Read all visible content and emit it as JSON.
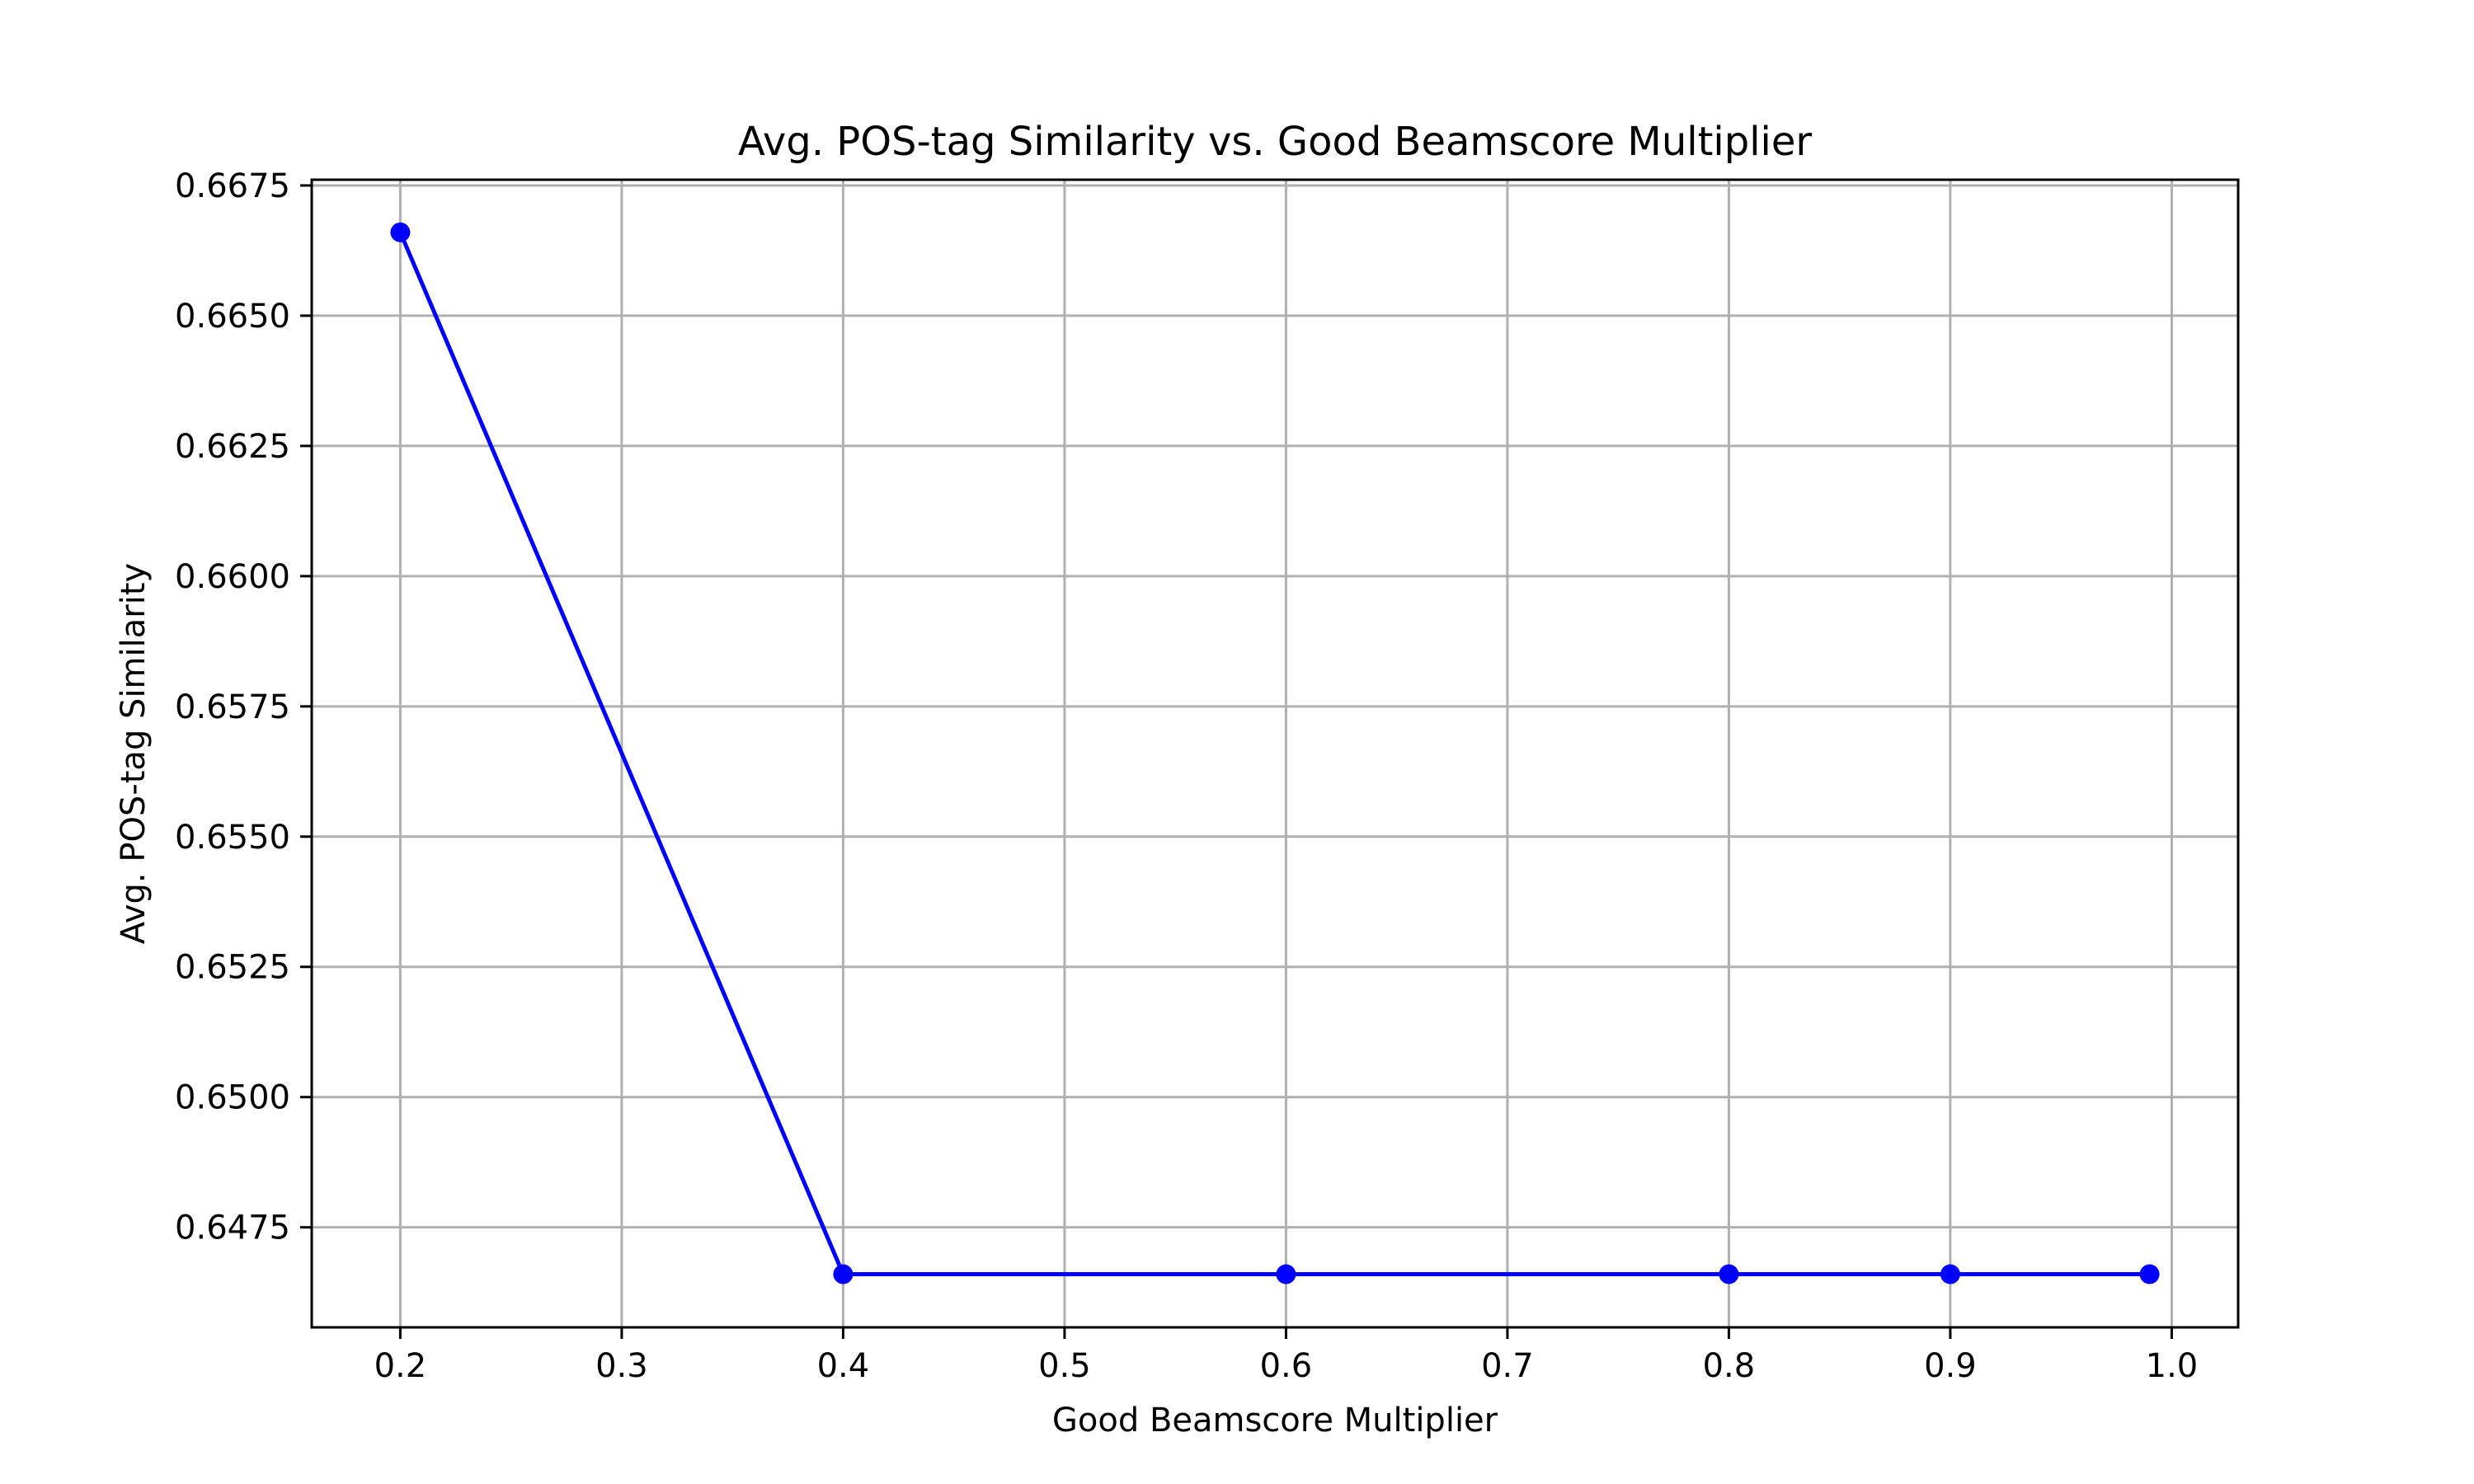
{
  "chart_data": {
    "type": "line",
    "title": "Avg. POS-tag Similarity vs. Good Beamscore Multiplier",
    "xlabel": "Good Beamscore Multiplier",
    "ylabel": "Avg. POS-tag Similarity",
    "x": [
      0.2,
      0.4,
      0.6,
      0.8,
      0.9,
      0.99
    ],
    "series": [
      {
        "values": [
          0.6666,
          0.6466,
          0.6466,
          0.6466,
          0.6466,
          0.6466
        ],
        "color": "#0000ff",
        "marker": "circle"
      }
    ],
    "xlim": [
      0.16,
      1.03
    ],
    "ylim": [
      0.64558,
      0.66761
    ],
    "xticks": [
      0.2,
      0.3,
      0.4,
      0.5,
      0.6,
      0.7,
      0.8,
      0.9,
      1.0
    ],
    "xtick_labels": [
      "0.2",
      "0.3",
      "0.4",
      "0.5",
      "0.6",
      "0.7",
      "0.8",
      "0.9",
      "1.0"
    ],
    "yticks": [
      0.6475,
      0.65,
      0.6525,
      0.655,
      0.6575,
      0.66,
      0.6625,
      0.665,
      0.6675
    ],
    "ytick_labels": [
      "0.6475",
      "0.6500",
      "0.6525",
      "0.6550",
      "0.6575",
      "0.6600",
      "0.6625",
      "0.6650",
      "0.6675"
    ],
    "grid": true,
    "legend": false
  }
}
